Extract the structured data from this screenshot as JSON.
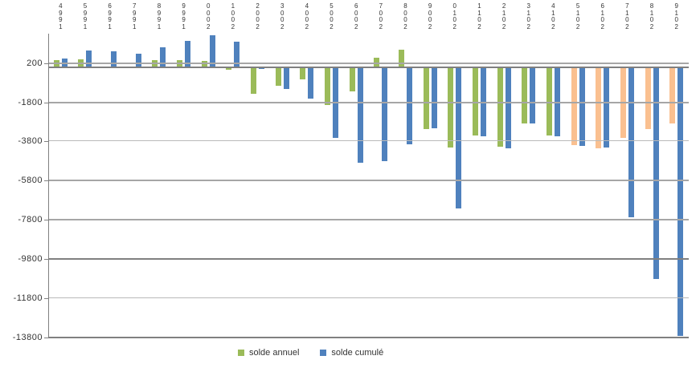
{
  "chart_data": {
    "type": "bar",
    "title": "",
    "xlabel": "",
    "ylabel": "",
    "categories": [
      1994,
      1995,
      1996,
      1997,
      1998,
      1999,
      2000,
      2001,
      2002,
      2003,
      2004,
      2005,
      2006,
      2007,
      2008,
      2009,
      2010,
      2011,
      2012,
      2013,
      2014,
      2015,
      2016,
      2017,
      2018,
      2019
    ],
    "series": [
      {
        "name": "solde annuel",
        "color": "#9BBB59",
        "highlight_color": "#FAC090",
        "highlight_from_year": 2015,
        "values": [
          370,
          400,
          0,
          0,
          340,
          370,
          320,
          -150,
          -1350,
          -950,
          -650,
          -1950,
          -1230,
          480,
          900,
          -3150,
          -4100,
          -3500,
          -4050,
          -2900,
          -3490,
          -4000,
          -4130,
          -3600,
          -3150,
          -2900
        ]
      },
      {
        "name": "solde cumulé",
        "color": "#4F81BD",
        "values": [
          430,
          850,
          780,
          680,
          1000,
          1320,
          1630,
          1280,
          -100,
          -1130,
          -1600,
          -3620,
          -4900,
          -4800,
          -3950,
          -3120,
          -7200,
          -3520,
          -4160,
          -2880,
          -3550,
          -4020,
          -4100,
          -7650,
          -10800,
          -13700
        ]
      }
    ],
    "yticks": [
      200,
      -1800,
      -3800,
      -5800,
      -7800,
      -9800,
      -11800,
      -13800
    ],
    "ylim": [
      -13800,
      1700
    ],
    "grid": "horizontal-major",
    "gridline_color": "#A6A6A6",
    "zero_line_color": "#808080",
    "x_label_style": "vertical-stacked-digits-reversed",
    "legend": {
      "position": "bottom",
      "entries": [
        "solde annuel",
        "solde cumulé"
      ]
    }
  }
}
